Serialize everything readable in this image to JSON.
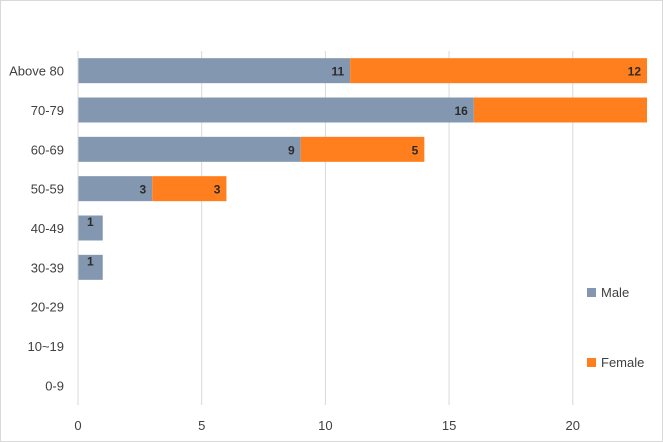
{
  "chart_data": {
    "type": "bar",
    "orientation": "horizontal",
    "stacked": true,
    "categories": [
      "Above 80",
      "70-79",
      "60-69",
      "50-59",
      "40-49",
      "30-39",
      "20-29",
      "10~19",
      "0-9"
    ],
    "series": [
      {
        "name": "Male",
        "color": "#8497b0",
        "values": [
          11,
          16,
          9,
          3,
          1,
          1,
          0,
          0,
          0
        ],
        "labels": [
          "11",
          "16",
          "9",
          "3",
          "1",
          "1",
          "",
          "",
          ""
        ]
      },
      {
        "name": "Female",
        "color": "#ff7f1e",
        "values": [
          12,
          7,
          5,
          3,
          0,
          0,
          0,
          0,
          0
        ],
        "labels": [
          "12",
          "",
          "5",
          "3",
          "",
          "",
          "",
          "",
          ""
        ]
      }
    ],
    "xlim": [
      0,
      23
    ],
    "xticks": [
      "0",
      "5",
      "10",
      "15",
      "20"
    ],
    "xtick_values": [
      0,
      5,
      10,
      15,
      20
    ],
    "grid": true,
    "legend_position": "right",
    "title": "",
    "xlabel": "",
    "ylabel": ""
  }
}
